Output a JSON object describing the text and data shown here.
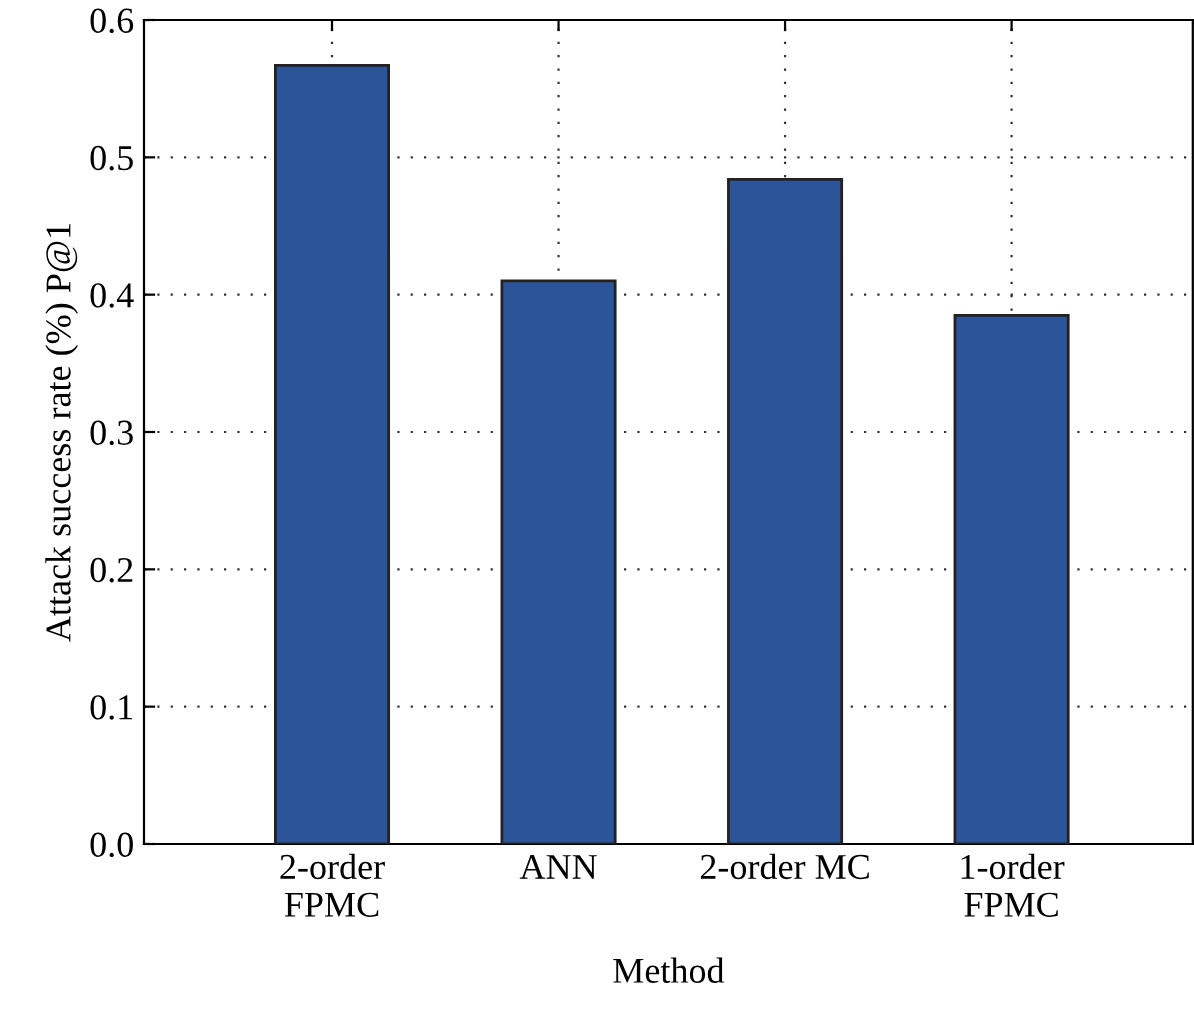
{
  "chart_data": {
    "type": "bar",
    "xlabel": "Method",
    "ylabel": "Attack success rate (%) P@1",
    "categories": [
      "2-order\nFPMC",
      "ANN",
      "2-order MC",
      "1-order\nFPMC"
    ],
    "values": [
      0.567,
      0.41,
      0.484,
      0.385
    ],
    "color": "#2c5599",
    "ylim": [
      0,
      0.6
    ],
    "yticks": [
      {
        "value": 0,
        "label": "0.0"
      },
      0.1,
      0.2,
      0.3,
      0.4,
      0.5,
      0.6
    ],
    "grid": true
  }
}
